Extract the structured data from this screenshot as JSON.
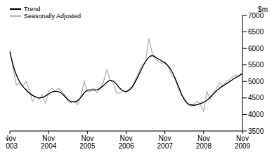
{
  "chart_data": {
    "type": "line",
    "y_label": "$m",
    "legend": "top-left",
    "grid": false,
    "categories": [
      "Nov 2003",
      null,
      null,
      null,
      null,
      null,
      null,
      null,
      null,
      null,
      null,
      null,
      "Nov 2004",
      null,
      null,
      null,
      null,
      null,
      null,
      null,
      null,
      null,
      null,
      null,
      "Nov 2005",
      null,
      null,
      null,
      null,
      null,
      null,
      null,
      null,
      null,
      null,
      null,
      "Nov 2006",
      null,
      null,
      null,
      null,
      null,
      null,
      null,
      null,
      null,
      null,
      null,
      "Nov 2007",
      null,
      null,
      null,
      null,
      null,
      null,
      null,
      null,
      null,
      null,
      null,
      "Nov 2008",
      null,
      null,
      null,
      null,
      null,
      null,
      null,
      null,
      null,
      null,
      null,
      "Nov 2009"
    ],
    "ylim": [
      3500,
      7000
    ],
    "yticks": [
      3500,
      4000,
      4500,
      5000,
      5500,
      6000,
      6500,
      7000
    ],
    "series": [
      {
        "name": "Trend",
        "color": "#000000",
        "line_style": "smooth",
        "values": [
          5900,
          5500,
          5200,
          5000,
          4850,
          4750,
          4650,
          4580,
          4530,
          4500,
          4510,
          4560,
          4620,
          4680,
          4700,
          4690,
          4640,
          4550,
          4450,
          4390,
          4380,
          4420,
          4520,
          4650,
          4730,
          4750,
          4740,
          4750,
          4800,
          4880,
          4970,
          5030,
          5010,
          4920,
          4800,
          4720,
          4700,
          4740,
          4850,
          5020,
          5220,
          5420,
          5600,
          5730,
          5780,
          5740,
          5680,
          5620,
          5560,
          5470,
          5330,
          5130,
          4900,
          4650,
          4450,
          4340,
          4290,
          4280,
          4300,
          4330,
          4370,
          4430,
          4520,
          4620,
          4720,
          4800,
          4870,
          4930,
          4990,
          5060,
          5120,
          5180,
          5240
        ]
      },
      {
        "name": "Seasonally Adjusted",
        "color": "#b3b3b3",
        "line_style": "straight",
        "values": [
          5950,
          5400,
          4900,
          4950,
          4850,
          5000,
          4750,
          4400,
          4550,
          4450,
          4600,
          4350,
          4700,
          4800,
          4700,
          4800,
          4700,
          4600,
          4400,
          4350,
          4400,
          4300,
          4550,
          5000,
          4700,
          4700,
          4800,
          4650,
          4800,
          5000,
          5350,
          5050,
          4950,
          4650,
          4650,
          4700,
          4650,
          4800,
          4850,
          5100,
          5300,
          5500,
          5600,
          6300,
          5900,
          5700,
          5600,
          5550,
          5600,
          5450,
          5200,
          5100,
          4800,
          4600,
          4500,
          4300,
          4250,
          4300,
          4400,
          4300,
          4100,
          4700,
          4450,
          4650,
          4800,
          4950,
          4850,
          5000,
          5050,
          5150,
          5200,
          5150,
          5250
        ]
      }
    ]
  }
}
